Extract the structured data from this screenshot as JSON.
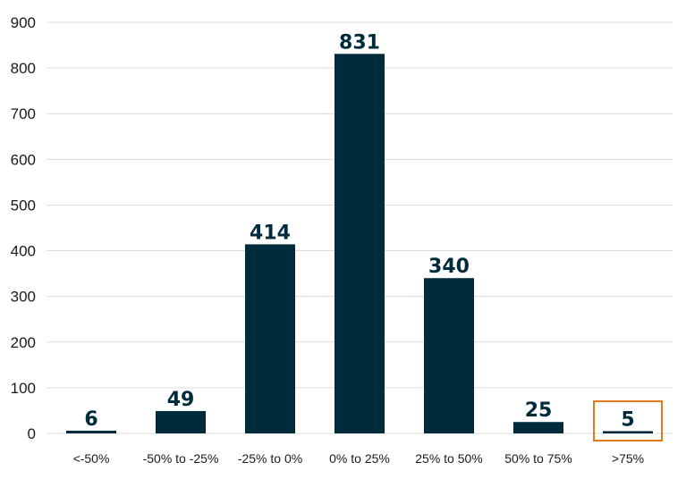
{
  "chart_data": {
    "type": "bar",
    "categories": [
      "<-50%",
      "-50% to -25%",
      "-25% to 0%",
      "0% to 25%",
      "25% to 50%",
      "50% to 75%",
      ">75%"
    ],
    "values": [
      6,
      49,
      414,
      831,
      340,
      25,
      5
    ],
    "data_labels": [
      "6",
      "49",
      "414",
      "831",
      "340",
      "25",
      "5"
    ],
    "yticks": [
      "0",
      "100",
      "200",
      "300",
      "400",
      "500",
      "600",
      "700",
      "800",
      "900"
    ],
    "ylim": [
      0,
      900
    ],
    "grid": true,
    "legend": "none",
    "highlighted_category": ">75%",
    "colors": {
      "bar": "#002b3d",
      "highlight": "#e07b1f",
      "grid": "#dcdcdc"
    }
  }
}
